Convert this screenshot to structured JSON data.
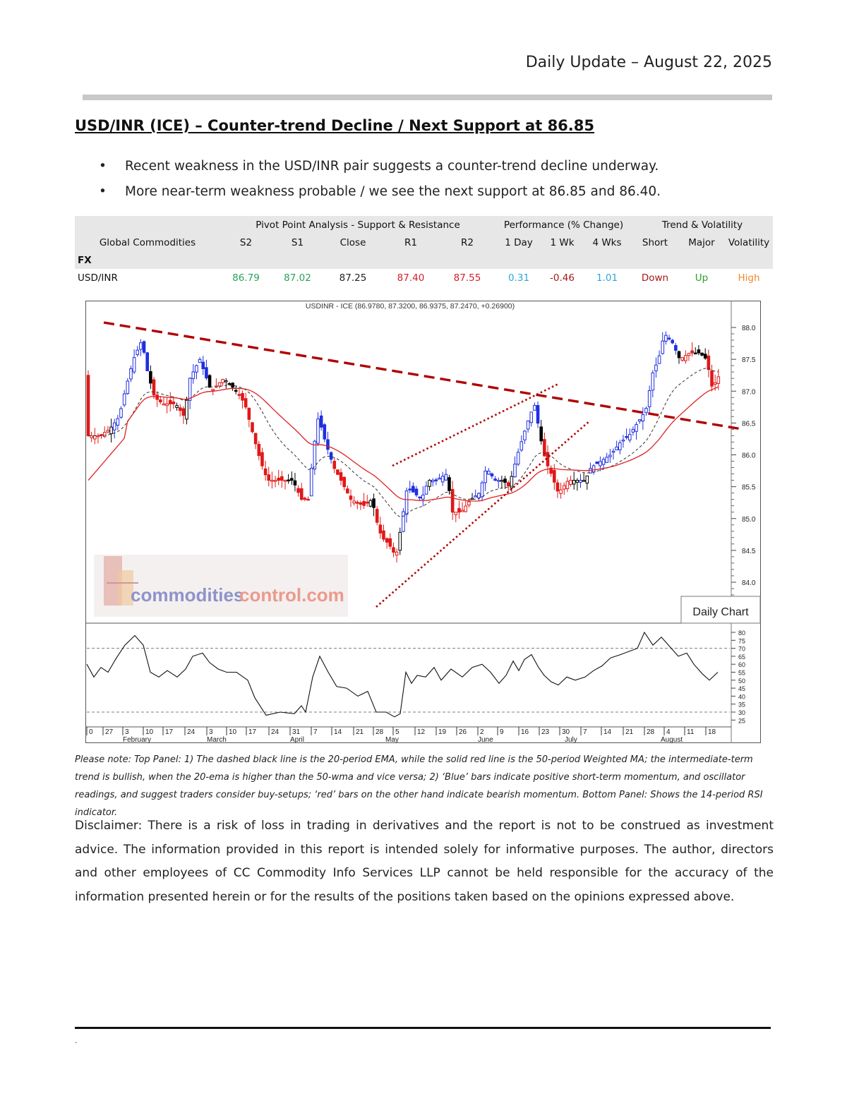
{
  "header": {
    "date_line": "Daily Update – August 22, 2025"
  },
  "title": "USD/INR (ICE) – Counter-trend Decline / Next Support at 86.85",
  "bullets": [
    "Recent weakness in the USD/INR pair suggests a counter-trend decline underway.",
    "More near-term weakness probable / we see the next support at 86.85 and 86.40."
  ],
  "table": {
    "group_pivot": "Pivot Point Analysis - Support & Resistance",
    "group_perf": "Performance (% Change)",
    "group_trend": "Trend & Volatility",
    "columns": [
      "Global Commodities",
      "S2",
      "S1",
      "Close",
      "R1",
      "R2",
      "1 Day",
      "1 Wk",
      "4 Wks",
      "Short",
      "Major",
      "Volatility"
    ],
    "section": "FX",
    "row": {
      "name": "USD/INR",
      "s2": "86.79",
      "s1": "87.02",
      "close": "87.25",
      "r1": "87.40",
      "r2": "87.55",
      "d1": "0.31",
      "w1": "-0.46",
      "w4": "1.01",
      "short": "Down",
      "major": "Up",
      "volatility": "High"
    },
    "colors": {
      "support": "#2aa05a",
      "resistance": "#d0202c",
      "positive": "#2aa8d8",
      "negative": "#a31a1a",
      "up": "#2aa02a",
      "high": "#f08a2a",
      "close": "#222222"
    }
  },
  "chart": {
    "header": "USDINR - ICE (86.9780, 87.3200, 86.9375, 87.2470, +0.26900)",
    "watermark_a": "commodities",
    "watermark_b": "control.com",
    "panel_label": "Daily Chart",
    "price_ticks": [
      "88.0",
      "87.5",
      "87.0",
      "86.5",
      "86.0",
      "85.5",
      "85.0",
      "84.5",
      "84.0"
    ],
    "rsi_ticks": [
      "80",
      "75",
      "70",
      "65",
      "60",
      "55",
      "50",
      "45",
      "40",
      "35",
      "30",
      "25"
    ],
    "x_days": [
      "0",
      "27",
      "3",
      "10",
      "17",
      "24",
      "3",
      "10",
      "17",
      "24",
      "31",
      "7",
      "14",
      "21",
      "28",
      "5",
      "12",
      "19",
      "26",
      "2",
      "9",
      "16",
      "23",
      "30",
      "7",
      "14",
      "21",
      "28",
      "4",
      "11",
      "18"
    ],
    "months": [
      "February",
      "March",
      "April",
      "May",
      "June",
      "July",
      "August"
    ],
    "colors": {
      "blue": "#1f2fe0",
      "red": "#e01818",
      "black": "#000000",
      "ema": "#333333",
      "wma": "#e02020",
      "trend": "#b00000"
    }
  },
  "note": "Please note: Top Panel: 1) The dashed black line is the 20-period EMA, while the solid red line is the 50-period Weighted MA; the intermediate-term trend is bullish, when the 20-ema is higher than the 50-wma and vice versa; 2)  ‘Blue’  bars indicate positive short-term momentum, and oscillator readings, and suggest traders consider buy-setups;  ‘red’  bars on the other hand indicate bearish momentum. Bottom Panel: Shows the 14-period RSI indicator.",
  "disclaimer": "Disclaimer: There is a risk of loss in trading in derivatives and the report is not to be construed as investment advice. The information provided in this report is intended solely for informative purposes. The author, directors and other employees of CC Commodity Info Services LLP cannot be held responsible for the accuracy of the information presented herein or for the results of the positions taken based on the opinions expressed above.",
  "footer": {
    "dot": "."
  }
}
